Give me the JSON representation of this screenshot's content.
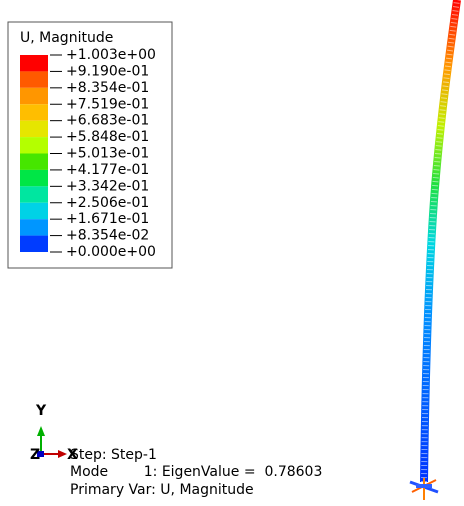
{
  "legend": {
    "title": "U, Magnitude",
    "labels": [
      "+1.003e+00",
      "+9.190e-01",
      "+8.354e-01",
      "+7.519e-01",
      "+6.683e-01",
      "+5.848e-01",
      "+5.013e-01",
      "+4.177e-01",
      "+3.342e-01",
      "+2.506e-01",
      "+1.671e-01",
      "+8.354e-02",
      "+0.000e+00"
    ],
    "colors": [
      "#ff0000",
      "#ff5a00",
      "#ff9600",
      "#ffbe00",
      "#e6e600",
      "#b4ff00",
      "#46e600",
      "#00e646",
      "#00e6a0",
      "#00d2e6",
      "#0096ff",
      "#003cff"
    ]
  },
  "triad": {
    "y": "Y",
    "x": "X",
    "z": "Z"
  },
  "info": {
    "step": "Step: Step-1",
    "mode": "Mode        1: EigenValue =  0.78603",
    "primary_var": "Primary Var: U, Magnitude"
  }
}
